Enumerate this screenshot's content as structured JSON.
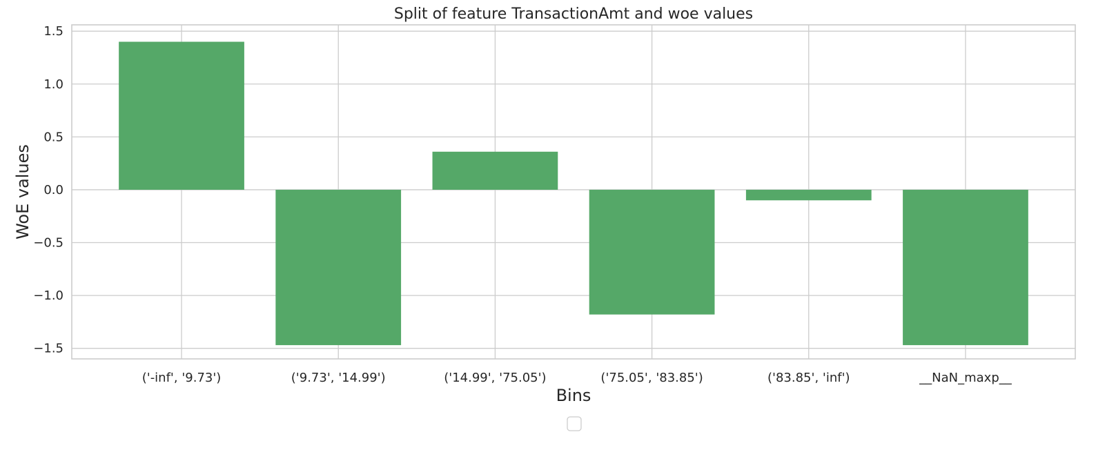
{
  "chart_data": {
    "type": "bar",
    "title": "Split of feature TransactionAmt and woe values",
    "xlabel": "Bins",
    "ylabel": "WoE values",
    "categories": [
      "('-inf', '9.73')",
      "('9.73', '14.99')",
      "('14.99', '75.05')",
      "('75.05', '83.85')",
      "('83.85', 'inf')",
      "__NaN_maxp__"
    ],
    "values": [
      1.4,
      -1.47,
      0.36,
      -1.18,
      -0.1,
      -1.47
    ],
    "ylim": [
      -1.6,
      1.56
    ],
    "yticks": [
      1.5,
      1.0,
      0.5,
      0.0,
      -0.5,
      -1.0,
      -1.5
    ],
    "ytick_labels": [
      "1.5",
      "1.0",
      "0.5",
      "0.0",
      "−0.5",
      "−1.0",
      "−1.5"
    ],
    "grid": true,
    "legend": "bottom-center (empty)",
    "colors": {
      "bar": "#55a868",
      "grid": "#cccccc",
      "frame": "#cccccc",
      "text": "#262626",
      "legend_border": "#cccccc"
    }
  }
}
